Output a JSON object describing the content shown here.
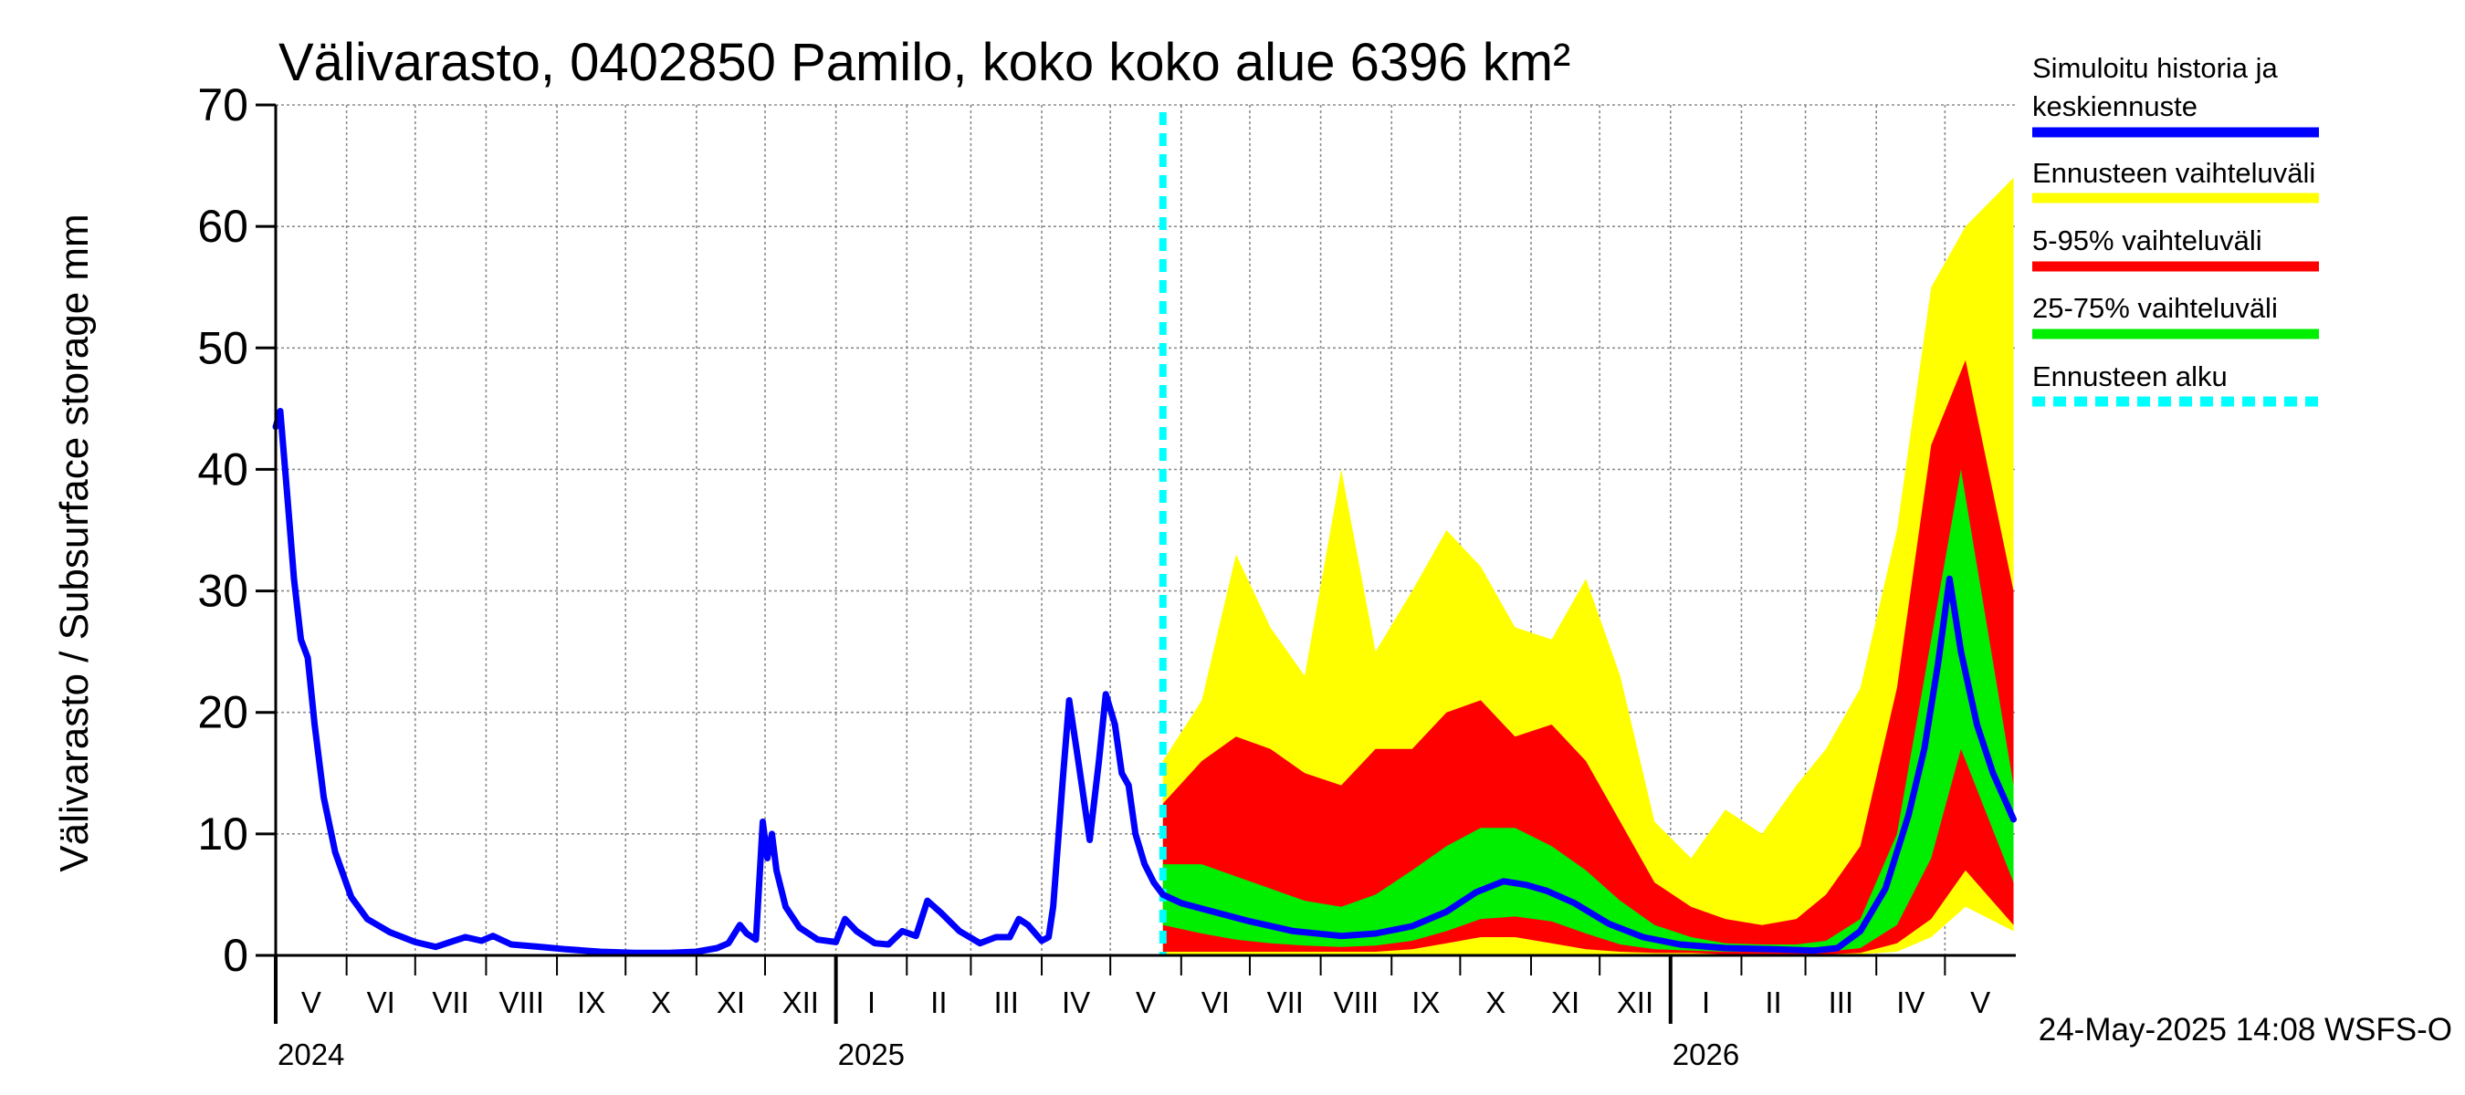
{
  "chart_data": {
    "type": "area",
    "title": "Välivarasto, 0402850 Pamilo, koko koko alue 6396 km²",
    "ylabel": "Välivarasto / Subsurface storage  mm",
    "xlabel": "",
    "ylim": [
      0,
      70
    ],
    "yticks": [
      0,
      10,
      20,
      30,
      40,
      50,
      60,
      70
    ],
    "xlim": [
      "2024-05-01",
      "2026-05-31"
    ],
    "x_month_labels": [
      "V",
      "VI",
      "VII",
      "VIII",
      "IX",
      "X",
      "XI",
      "XII",
      "I",
      "II",
      "III",
      "IV",
      "V",
      "VI",
      "VII",
      "VIII",
      "IX",
      "X",
      "XI",
      "XII",
      "I",
      "II",
      "III",
      "IV",
      "V"
    ],
    "x_year_labels": [
      {
        "year": "2024",
        "date": "2024-05-01"
      },
      {
        "year": "2025",
        "date": "2025-01-01"
      },
      {
        "year": "2026",
        "date": "2026-01-01"
      }
    ],
    "grid": true,
    "forecast_start": "2025-05-24",
    "footer": "24-May-2025 14:08 WSFS-O",
    "legend_position": "right",
    "legend": [
      {
        "label_lines": [
          "Simuloitu historia ja",
          "keskiennuste"
        ],
        "color": "#0000ff",
        "style": "solid"
      },
      {
        "label_lines": [
          "Ennusteen vaihteluväli"
        ],
        "color": "#ffff00",
        "style": "solid"
      },
      {
        "label_lines": [
          "5-95% vaihteluväli"
        ],
        "color": "#ff0000",
        "style": "solid"
      },
      {
        "label_lines": [
          "25-75% vaihteluväli"
        ],
        "color": "#00ee00",
        "style": "solid"
      },
      {
        "label_lines": [
          "Ennusteen alku"
        ],
        "color": "#00ffff",
        "style": "dashed"
      }
    ],
    "series": [
      {
        "name": "Simuloitu historia ja keskiennuste",
        "color": "#0000ff",
        "points": [
          [
            "2024-05-01",
            43.5
          ],
          [
            "2024-05-03",
            44.8
          ],
          [
            "2024-05-06",
            38
          ],
          [
            "2024-05-09",
            31
          ],
          [
            "2024-05-12",
            26
          ],
          [
            "2024-05-15",
            24.5
          ],
          [
            "2024-05-18",
            19
          ],
          [
            "2024-05-22",
            13
          ],
          [
            "2024-05-27",
            8.5
          ],
          [
            "2024-06-03",
            4.8
          ],
          [
            "2024-06-10",
            3.0
          ],
          [
            "2024-06-20",
            1.9
          ],
          [
            "2024-07-01",
            1.1
          ],
          [
            "2024-07-10",
            0.7
          ],
          [
            "2024-07-18",
            1.2
          ],
          [
            "2024-07-23",
            1.5
          ],
          [
            "2024-07-30",
            1.2
          ],
          [
            "2024-08-04",
            1.6
          ],
          [
            "2024-08-12",
            0.9
          ],
          [
            "2024-08-25",
            0.7
          ],
          [
            "2024-09-05",
            0.5
          ],
          [
            "2024-09-20",
            0.3
          ],
          [
            "2024-10-05",
            0.2
          ],
          [
            "2024-10-20",
            0.2
          ],
          [
            "2024-11-01",
            0.3
          ],
          [
            "2024-11-10",
            0.6
          ],
          [
            "2024-11-15",
            1.0
          ],
          [
            "2024-11-20",
            2.5
          ],
          [
            "2024-11-23",
            1.8
          ],
          [
            "2024-11-27",
            1.3
          ],
          [
            "2024-11-30",
            11.0
          ],
          [
            "2024-12-02",
            8.0
          ],
          [
            "2024-12-04",
            10.0
          ],
          [
            "2024-12-06",
            7.0
          ],
          [
            "2024-12-10",
            4.0
          ],
          [
            "2024-12-16",
            2.3
          ],
          [
            "2024-12-24",
            1.3
          ],
          [
            "2025-01-01",
            1.1
          ],
          [
            "2025-01-05",
            3.0
          ],
          [
            "2025-01-10",
            2.0
          ],
          [
            "2025-01-18",
            1.0
          ],
          [
            "2025-01-24",
            0.9
          ],
          [
            "2025-01-30",
            2.0
          ],
          [
            "2025-02-05",
            1.6
          ],
          [
            "2025-02-10",
            4.5
          ],
          [
            "2025-02-16",
            3.5
          ],
          [
            "2025-02-24",
            2.0
          ],
          [
            "2025-03-05",
            1.0
          ],
          [
            "2025-03-12",
            1.5
          ],
          [
            "2025-03-18",
            1.5
          ],
          [
            "2025-03-22",
            3.0
          ],
          [
            "2025-03-26",
            2.5
          ],
          [
            "2025-04-01",
            1.2
          ],
          [
            "2025-04-04",
            1.5
          ],
          [
            "2025-04-06",
            4.0
          ],
          [
            "2025-04-10",
            14
          ],
          [
            "2025-04-13",
            21
          ],
          [
            "2025-04-17",
            16
          ],
          [
            "2025-04-22",
            9.5
          ],
          [
            "2025-04-26",
            16
          ],
          [
            "2025-04-29",
            21.5
          ],
          [
            "2025-05-03",
            19
          ],
          [
            "2025-05-06",
            15
          ],
          [
            "2025-05-09",
            14
          ],
          [
            "2025-05-12",
            10
          ],
          [
            "2025-05-16",
            7.5
          ],
          [
            "2025-05-20",
            6.0
          ],
          [
            "2025-05-24",
            5.0
          ],
          [
            "2025-06-01",
            4.3
          ],
          [
            "2025-06-15",
            3.6
          ],
          [
            "2025-07-01",
            2.8
          ],
          [
            "2025-07-20",
            2.0
          ],
          [
            "2025-08-10",
            1.6
          ],
          [
            "2025-08-25",
            1.8
          ],
          [
            "2025-09-10",
            2.4
          ],
          [
            "2025-09-25",
            3.6
          ],
          [
            "2025-10-08",
            5.2
          ],
          [
            "2025-10-20",
            6.1
          ],
          [
            "2025-10-30",
            5.8
          ],
          [
            "2025-11-08",
            5.3
          ],
          [
            "2025-11-20",
            4.3
          ],
          [
            "2025-12-05",
            2.6
          ],
          [
            "2025-12-20",
            1.5
          ],
          [
            "2026-01-05",
            0.9
          ],
          [
            "2026-01-25",
            0.6
          ],
          [
            "2026-02-15",
            0.5
          ],
          [
            "2026-03-05",
            0.4
          ],
          [
            "2026-03-15",
            0.6
          ],
          [
            "2026-03-25",
            2.0
          ],
          [
            "2026-04-05",
            5.5
          ],
          [
            "2026-04-15",
            11.5
          ],
          [
            "2026-04-22",
            17
          ],
          [
            "2026-04-28",
            24
          ],
          [
            "2026-05-03",
            31
          ],
          [
            "2026-05-08",
            25
          ],
          [
            "2026-05-15",
            19
          ],
          [
            "2026-05-22",
            15
          ],
          [
            "2026-05-31",
            11.2
          ]
        ]
      },
      {
        "name": "Ennusteen vaihteluväli",
        "color": "#ffff00",
        "band": [
          [
            "2025-05-24",
            0.1,
            16
          ],
          [
            "2025-06-10",
            0.1,
            21
          ],
          [
            "2025-06-25",
            0.1,
            33
          ],
          [
            "2025-07-10",
            0.1,
            27
          ],
          [
            "2025-07-25",
            0.1,
            23
          ],
          [
            "2025-08-10",
            0.1,
            40
          ],
          [
            "2025-08-25",
            0.1,
            25
          ],
          [
            "2025-09-10",
            0.1,
            30
          ],
          [
            "2025-09-25",
            0.1,
            35
          ],
          [
            "2025-10-10",
            0.1,
            32
          ],
          [
            "2025-10-25",
            0.1,
            27
          ],
          [
            "2025-11-10",
            0.1,
            26
          ],
          [
            "2025-11-25",
            0.1,
            31
          ],
          [
            "2025-12-10",
            0.1,
            23
          ],
          [
            "2025-12-25",
            0.1,
            11
          ],
          [
            "2026-01-10",
            0.1,
            8
          ],
          [
            "2026-01-25",
            0.1,
            12
          ],
          [
            "2026-02-10",
            0.1,
            10
          ],
          [
            "2026-02-25",
            0.1,
            14
          ],
          [
            "2026-03-10",
            0.1,
            17
          ],
          [
            "2026-03-25",
            0.1,
            22
          ],
          [
            "2026-04-10",
            0.3,
            35
          ],
          [
            "2026-04-25",
            1.5,
            55
          ],
          [
            "2026-05-10",
            4,
            60
          ],
          [
            "2026-05-31",
            2,
            64
          ]
        ]
      },
      {
        "name": "5-95% vaihteluväli",
        "color": "#ff0000",
        "band": [
          [
            "2025-05-24",
            0.3,
            12.5
          ],
          [
            "2025-06-10",
            0.3,
            16
          ],
          [
            "2025-06-25",
            0.3,
            18
          ],
          [
            "2025-07-10",
            0.3,
            17
          ],
          [
            "2025-07-25",
            0.3,
            15
          ],
          [
            "2025-08-10",
            0.3,
            14
          ],
          [
            "2025-08-25",
            0.3,
            17
          ],
          [
            "2025-09-10",
            0.5,
            17
          ],
          [
            "2025-09-25",
            1.0,
            20
          ],
          [
            "2025-10-10",
            1.5,
            21
          ],
          [
            "2025-10-25",
            1.5,
            18
          ],
          [
            "2025-11-10",
            1.0,
            19
          ],
          [
            "2025-11-25",
            0.5,
            16
          ],
          [
            "2025-12-10",
            0.3,
            11
          ],
          [
            "2025-12-25",
            0.2,
            6
          ],
          [
            "2026-01-10",
            0.2,
            4
          ],
          [
            "2026-01-25",
            0.1,
            3
          ],
          [
            "2026-02-10",
            0.1,
            2.5
          ],
          [
            "2026-02-25",
            0.1,
            3
          ],
          [
            "2026-03-10",
            0.1,
            5
          ],
          [
            "2026-03-25",
            0.2,
            9
          ],
          [
            "2026-04-10",
            1.0,
            22
          ],
          [
            "2026-04-25",
            3.0,
            42
          ],
          [
            "2026-05-10",
            7.0,
            49
          ],
          [
            "2026-05-31",
            2.5,
            30
          ]
        ]
      },
      {
        "name": "25-75% vaihteluväli",
        "color": "#00ee00",
        "band": [
          [
            "2025-05-24",
            2.5,
            7.5
          ],
          [
            "2025-06-10",
            1.8,
            7.5
          ],
          [
            "2025-06-25",
            1.3,
            6.5
          ],
          [
            "2025-07-10",
            1.0,
            5.5
          ],
          [
            "2025-07-25",
            0.8,
            4.5
          ],
          [
            "2025-08-10",
            0.7,
            4.0
          ],
          [
            "2025-08-25",
            0.8,
            5.0
          ],
          [
            "2025-09-10",
            1.2,
            7.0
          ],
          [
            "2025-09-25",
            2.0,
            9.0
          ],
          [
            "2025-10-10",
            3.0,
            10.5
          ],
          [
            "2025-10-25",
            3.2,
            10.5
          ],
          [
            "2025-11-10",
            2.8,
            9.0
          ],
          [
            "2025-11-25",
            1.8,
            7.0
          ],
          [
            "2025-12-10",
            0.9,
            4.5
          ],
          [
            "2025-12-25",
            0.5,
            2.5
          ],
          [
            "2026-01-10",
            0.4,
            1.5
          ],
          [
            "2026-01-25",
            0.3,
            1.0
          ],
          [
            "2026-02-10",
            0.3,
            0.9
          ],
          [
            "2026-02-25",
            0.3,
            0.9
          ],
          [
            "2026-03-10",
            0.3,
            1.2
          ],
          [
            "2026-03-25",
            0.6,
            3.0
          ],
          [
            "2026-04-10",
            2.5,
            10.0
          ],
          [
            "2026-04-25",
            8.0,
            26.0
          ],
          [
            "2026-05-08",
            17.0,
            40.0
          ],
          [
            "2026-05-31",
            6.0,
            14.0
          ]
        ]
      }
    ]
  }
}
